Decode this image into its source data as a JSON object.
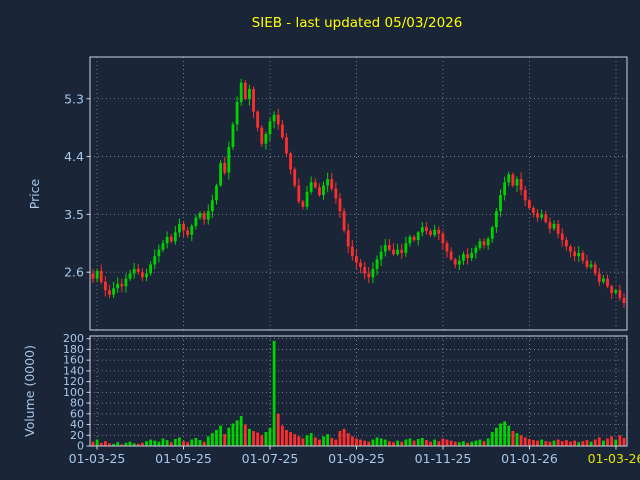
{
  "colors": {
    "background": "#1a2537",
    "grid": "#c0ccd8",
    "axis_border": "#ccd4e2",
    "tick_label": "#a6c8ea",
    "x_last_tick_label": "#e4e400",
    "title": "#ffff00",
    "up": "#00d400",
    "down": "#ff2e2e"
  },
  "chart_data": {
    "type": "candlestick+volume",
    "title": "SIEB - last updated 05/03/2026",
    "symbol": "SIEB",
    "last_updated": "05/03/2026",
    "x_tick_labels": [
      "01-03-25",
      "01-05-25",
      "01-07-25",
      "01-09-25",
      "01-11-25",
      "01-01-26",
      "01-03-26"
    ],
    "price": {
      "ylabel": "Price",
      "yticks": [
        2.6,
        3.5,
        4.4,
        5.3
      ],
      "ylim": [
        1.7,
        5.95
      ]
    },
    "volume": {
      "ylabel": "Volume (0000)",
      "yticks": [
        0,
        20,
        40,
        60,
        80,
        100,
        120,
        140,
        160,
        180,
        200
      ],
      "ylim": [
        0,
        205
      ]
    },
    "first_open": 2.58,
    "closes": [
      2.5,
      2.62,
      2.45,
      2.32,
      2.25,
      2.35,
      2.42,
      2.38,
      2.5,
      2.58,
      2.65,
      2.6,
      2.52,
      2.58,
      2.72,
      2.85,
      2.95,
      3.05,
      3.15,
      3.08,
      3.22,
      3.35,
      3.25,
      3.18,
      3.32,
      3.45,
      3.52,
      3.42,
      3.55,
      3.72,
      3.95,
      4.3,
      4.15,
      4.55,
      4.9,
      5.25,
      5.55,
      5.3,
      5.45,
      5.1,
      4.85,
      4.6,
      4.75,
      4.95,
      5.05,
      4.9,
      4.7,
      4.45,
      4.2,
      3.95,
      3.7,
      3.62,
      3.85,
      4.0,
      3.92,
      3.8,
      3.95,
      4.05,
      3.9,
      3.75,
      3.55,
      3.25,
      3.0,
      2.85,
      2.75,
      2.68,
      2.58,
      2.52,
      2.65,
      2.8,
      2.92,
      3.02,
      2.95,
      2.88,
      2.95,
      2.9,
      3.05,
      3.15,
      3.1,
      3.22,
      3.3,
      3.24,
      3.18,
      3.26,
      3.2,
      3.05,
      2.92,
      2.8,
      2.72,
      2.78,
      2.88,
      2.82,
      2.9,
      2.98,
      3.08,
      3.02,
      3.12,
      3.3,
      3.55,
      3.8,
      4.0,
      4.12,
      3.95,
      4.05,
      3.88,
      3.72,
      3.6,
      3.52,
      3.45,
      3.5,
      3.38,
      3.28,
      3.35,
      3.2,
      3.1,
      3.0,
      2.92,
      2.85,
      2.9,
      2.78,
      2.68,
      2.72,
      2.58,
      2.45,
      2.5,
      2.38,
      2.28,
      2.32,
      2.2,
      2.12
    ],
    "volumes": [
      8,
      12,
      6,
      9,
      5,
      4,
      7,
      3,
      6,
      8,
      5,
      4,
      6,
      9,
      12,
      10,
      8,
      14,
      11,
      7,
      13,
      16,
      9,
      7,
      12,
      15,
      11,
      8,
      18,
      24,
      30,
      38,
      22,
      34,
      42,
      48,
      56,
      40,
      32,
      28,
      25,
      20,
      26,
      34,
      196,
      60,
      38,
      30,
      26,
      22,
      18,
      14,
      20,
      24,
      16,
      12,
      18,
      22,
      15,
      12,
      28,
      32,
      24,
      18,
      14,
      12,
      10,
      8,
      12,
      16,
      14,
      12,
      9,
      7,
      10,
      8,
      12,
      14,
      10,
      13,
      15,
      11,
      8,
      12,
      9,
      14,
      12,
      10,
      8,
      7,
      9,
      6,
      8,
      10,
      12,
      9,
      14,
      26,
      34,
      42,
      46,
      38,
      28,
      24,
      20,
      16,
      13,
      11,
      10,
      12,
      9,
      8,
      10,
      12,
      9,
      11,
      8,
      10,
      7,
      9,
      11,
      8,
      12,
      16,
      10,
      14,
      18,
      12,
      20,
      15
    ]
  }
}
